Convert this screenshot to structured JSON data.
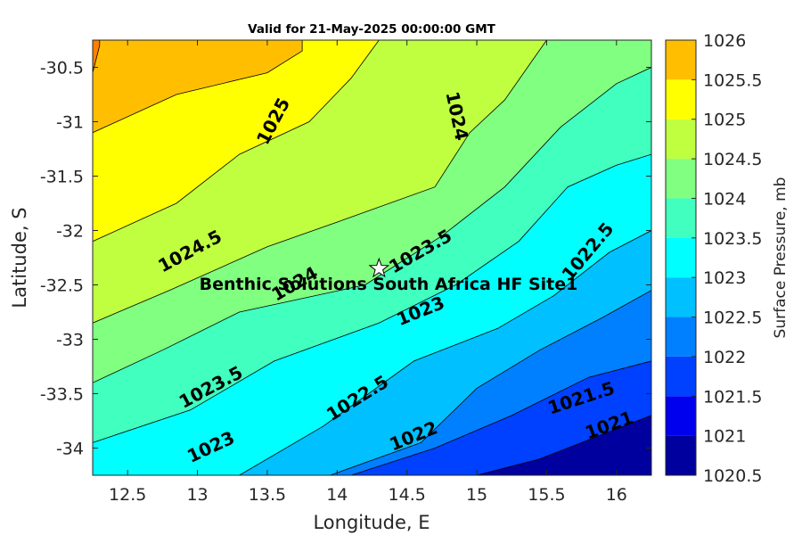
{
  "chart_data": {
    "type": "contour",
    "title": "Valid for 21-May-2025 00:00:00 GMT",
    "xlabel": "Longitude, E",
    "ylabel": "Latitude, S",
    "xlim": [
      12.25,
      16.25
    ],
    "ylim": [
      -34.25,
      -30.25
    ],
    "xticks": [
      12.5,
      13,
      13.5,
      14,
      14.5,
      15,
      15.5,
      16
    ],
    "xtick_labels": [
      "12.5",
      "13",
      "13.5",
      "14",
      "14.5",
      "15",
      "15.5",
      "16"
    ],
    "yticks": [
      -30.5,
      -31,
      -31.5,
      -32,
      -32.5,
      -33,
      -33.5,
      -34
    ],
    "ytick_labels": [
      "-30.5",
      "-31",
      "-31.5",
      "-32",
      "-32.5",
      "-33",
      "-33.5",
      "-34"
    ],
    "colorbar": {
      "label": "Surface Pressure, mb",
      "ticks": [
        1020.5,
        1021,
        1021.5,
        1022,
        1022.5,
        1023,
        1023.5,
        1024,
        1024.5,
        1025,
        1025.5,
        1026
      ],
      "tick_labels": [
        "1020.5",
        "1021",
        "1021.5",
        "1022",
        "1022.5",
        "1023",
        "1023.5",
        "1024",
        "1024.5",
        "1025",
        "1025.5",
        "1026"
      ],
      "colors": [
        "#00009f",
        "#0000ef",
        "#0040ff",
        "#0080ff",
        "#00c0ff",
        "#00ffff",
        "#40ffbf",
        "#80ff80",
        "#bfff40",
        "#ffff00",
        "#ffbf00",
        "#ff8000",
        "#ff4000",
        "#ff0000",
        "#bf0000"
      ]
    },
    "contour_levels": [
      1020.5,
      1021,
      1021.5,
      1022,
      1022.5,
      1023,
      1023.5,
      1024,
      1024.5,
      1025,
      1025.5
    ],
    "contour_lines": [
      {
        "level": 1021,
        "points": [
          [
            15.0,
            -34.25
          ],
          [
            15.45,
            -34.1
          ],
          [
            15.85,
            -33.9
          ],
          [
            16.25,
            -33.7
          ]
        ]
      },
      {
        "level": 1021.5,
        "points": [
          [
            14.1,
            -34.25
          ],
          [
            14.7,
            -34.0
          ],
          [
            15.25,
            -33.7
          ],
          [
            15.8,
            -33.35
          ],
          [
            16.25,
            -33.2
          ]
        ]
      },
      {
        "level": 1022,
        "points": [
          [
            13.95,
            -34.25
          ],
          [
            14.6,
            -33.95
          ],
          [
            15.0,
            -33.45
          ],
          [
            15.45,
            -33.1
          ],
          [
            15.9,
            -32.8
          ],
          [
            16.25,
            -32.55
          ]
        ]
      },
      {
        "level": 1022.5,
        "points": [
          [
            13.3,
            -34.25
          ],
          [
            13.9,
            -33.8
          ],
          [
            14.55,
            -33.2
          ],
          [
            15.15,
            -32.9
          ],
          [
            15.55,
            -32.6
          ],
          [
            15.95,
            -32.2
          ],
          [
            16.25,
            -32.0
          ]
        ]
      },
      {
        "level": 1023,
        "points": [
          [
            12.25,
            -33.95
          ],
          [
            12.95,
            -33.65
          ],
          [
            13.55,
            -33.2
          ],
          [
            14.3,
            -32.85
          ],
          [
            14.85,
            -32.5
          ],
          [
            15.3,
            -32.1
          ],
          [
            15.65,
            -31.6
          ],
          [
            16.0,
            -31.4
          ],
          [
            16.25,
            -31.3
          ]
        ]
      },
      {
        "level": 1023.5,
        "points": [
          [
            12.25,
            -33.4
          ],
          [
            12.75,
            -33.1
          ],
          [
            13.3,
            -32.75
          ],
          [
            14.2,
            -32.5
          ],
          [
            14.75,
            -32.05
          ],
          [
            15.2,
            -31.6
          ],
          [
            15.6,
            -31.05
          ],
          [
            16.0,
            -30.65
          ],
          [
            16.25,
            -30.5
          ]
        ]
      },
      {
        "level": 1024,
        "points": [
          [
            12.25,
            -32.85
          ],
          [
            12.8,
            -32.55
          ],
          [
            13.5,
            -32.15
          ],
          [
            14.05,
            -31.9
          ],
          [
            14.7,
            -31.6
          ],
          [
            14.95,
            -31.1
          ],
          [
            15.2,
            -30.8
          ],
          [
            15.5,
            -30.25
          ]
        ]
      },
      {
        "level": 1024.5,
        "points": [
          [
            12.25,
            -32.1
          ],
          [
            12.85,
            -31.75
          ],
          [
            13.3,
            -31.3
          ],
          [
            13.8,
            -31.0
          ],
          [
            14.1,
            -30.6
          ],
          [
            14.3,
            -30.25
          ]
        ]
      },
      {
        "level": 1025,
        "points": [
          [
            12.25,
            -31.1
          ],
          [
            12.85,
            -30.75
          ],
          [
            13.5,
            -30.55
          ],
          [
            13.75,
            -30.35
          ],
          [
            13.75,
            -30.25
          ]
        ]
      },
      {
        "level": 1025.5,
        "points": [
          [
            12.25,
            -30.55
          ],
          [
            12.3,
            -30.3
          ],
          [
            12.3,
            -30.25
          ]
        ]
      }
    ],
    "contour_labels": [
      {
        "text": "1025",
        "x": 13.55,
        "y": -31.0,
        "angle": -62
      },
      {
        "text": "1024",
        "x": 14.85,
        "y": -30.95,
        "angle": 78
      },
      {
        "text": "1024.5",
        "x": 12.95,
        "y": -32.2,
        "angle": -28
      },
      {
        "text": "1024",
        "x": 13.7,
        "y": -32.5,
        "angle": -30
      },
      {
        "text": "1023.5",
        "x": 14.6,
        "y": -32.2,
        "angle": -30
      },
      {
        "text": "1022.5",
        "x": 15.8,
        "y": -32.2,
        "angle": -50
      },
      {
        "text": "1023",
        "x": 14.6,
        "y": -32.75,
        "angle": -22
      },
      {
        "text": "1023.5",
        "x": 13.1,
        "y": -33.45,
        "angle": -28
      },
      {
        "text": "1022.5",
        "x": 14.15,
        "y": -33.55,
        "angle": -32
      },
      {
        "text": "1023",
        "x": 13.1,
        "y": -34.0,
        "angle": -25
      },
      {
        "text": "1022",
        "x": 14.55,
        "y": -33.9,
        "angle": -22
      },
      {
        "text": "1021.5",
        "x": 15.75,
        "y": -33.55,
        "angle": -18
      },
      {
        "text": "1021",
        "x": 15.95,
        "y": -33.8,
        "angle": -20
      }
    ],
    "site": {
      "name": "Benthic Solutions South Africa HF Site1",
      "x": 14.3,
      "y": -32.35,
      "marker": "star"
    },
    "grid": false
  }
}
